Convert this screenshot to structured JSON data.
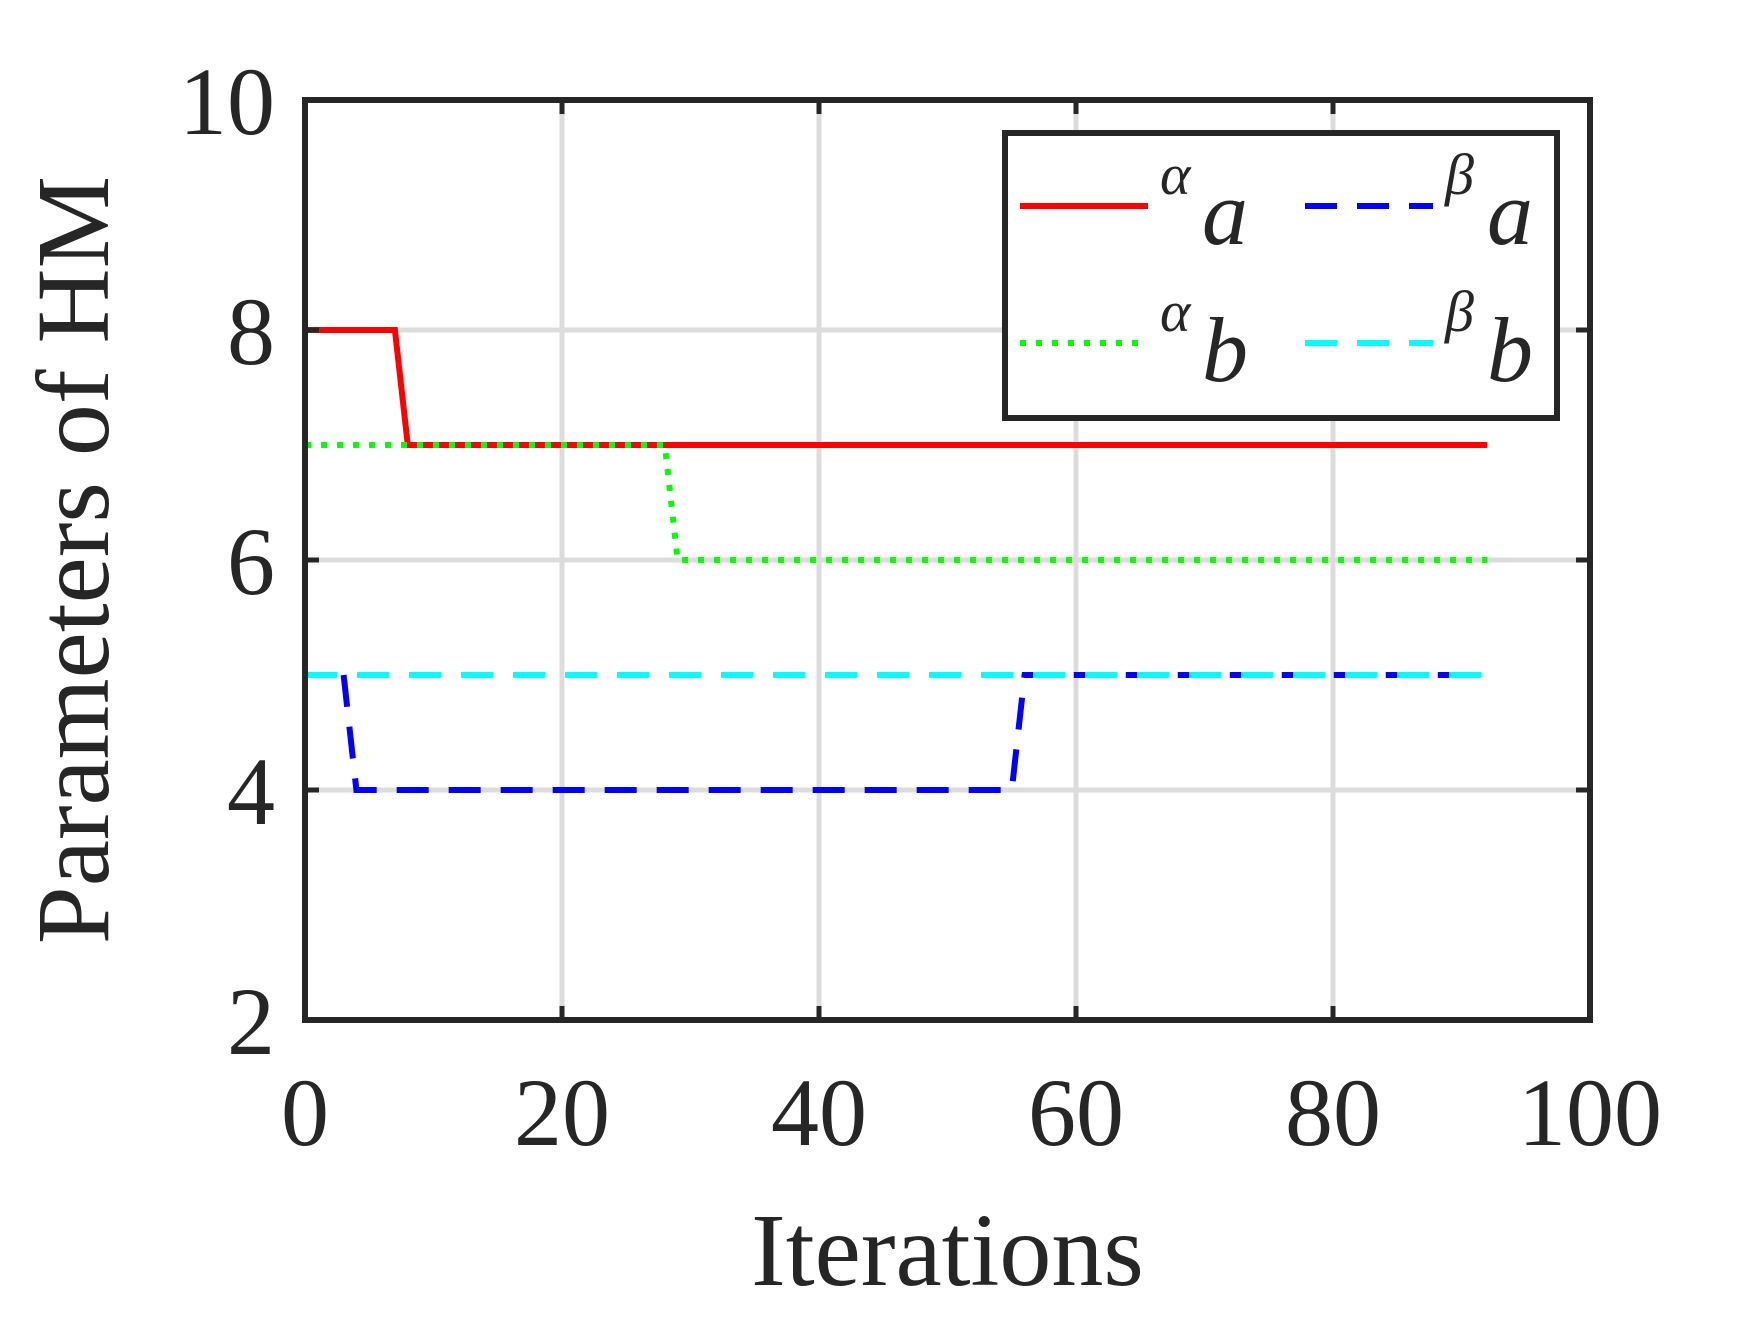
{
  "chart_data": {
    "type": "line",
    "xlabel": "Iterations",
    "ylabel": "Parameters of HM",
    "xlim": [
      0,
      100
    ],
    "ylim": [
      2,
      10
    ],
    "xticks": [
      0,
      20,
      40,
      60,
      80,
      100
    ],
    "yticks": [
      2,
      4,
      6,
      8,
      10
    ],
    "xtick_labels": [
      "0",
      "20",
      "40",
      "60",
      "80",
      "100"
    ],
    "ytick_labels": [
      "2",
      "4",
      "6",
      "8",
      "10"
    ],
    "grid": true,
    "legend_position": "top-right",
    "legend_columns": 2,
    "series": [
      {
        "name": "αa",
        "name_superscript": "α",
        "name_main": "a",
        "color": "#ff0000",
        "line_style": "solid",
        "x": [
          0,
          7,
          8,
          92
        ],
        "y": [
          8,
          8,
          7,
          7
        ]
      },
      {
        "name": "βa",
        "name_superscript": "β",
        "name_main": "a",
        "color": "#0000ff",
        "line_style": "dashed",
        "x": [
          3,
          4,
          55,
          56,
          92
        ],
        "y": [
          5,
          4,
          4,
          5,
          5
        ]
      },
      {
        "name": "αb",
        "name_superscript": "α",
        "name_main": "b",
        "color": "#00ff00",
        "line_style": "dotted",
        "x": [
          0,
          28,
          29,
          92
        ],
        "y": [
          7,
          7,
          6,
          6
        ]
      },
      {
        "name": "βb",
        "name_superscript": "β",
        "name_main": "b",
        "color": "#00ffff",
        "line_style": "dashed",
        "x": [
          0,
          92
        ],
        "y": [
          5,
          5
        ]
      }
    ]
  }
}
